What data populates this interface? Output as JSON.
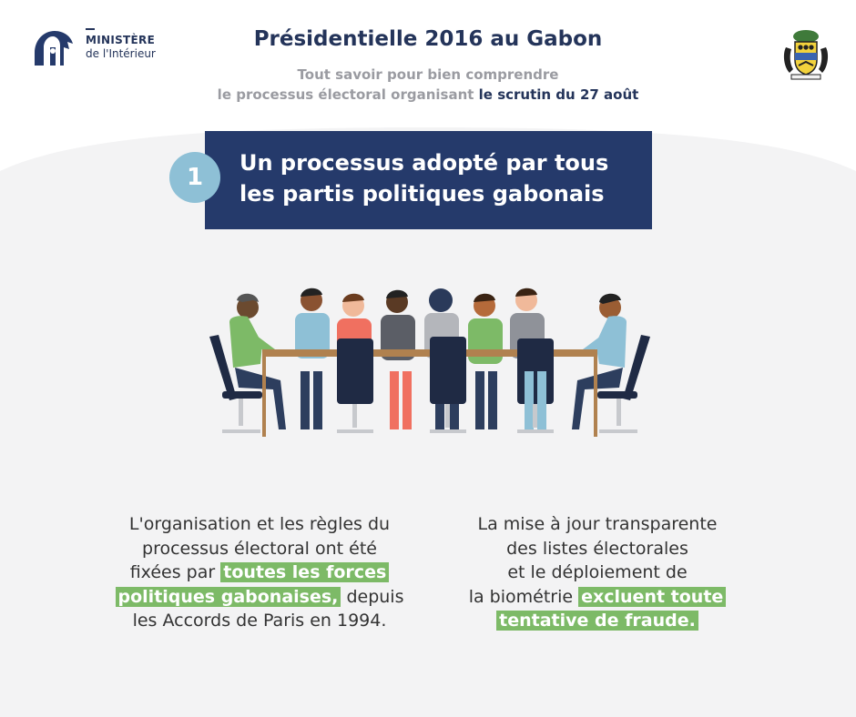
{
  "header": {
    "ministry_line1": "MINISTÈRE",
    "ministry_line2": "de l'Intérieur",
    "title": "Présidentielle 2016 au Gabon",
    "subtitle_line1": "Tout savoir pour bien comprendre",
    "subtitle_line2_plain": "le processus électoral organisant",
    "subtitle_line2_highlight": "le scrutin du 27 août"
  },
  "section": {
    "number": "1",
    "title_line1": "Un processus adopté par tous",
    "title_line2": "les partis politiques gabonais"
  },
  "paragraph_left": {
    "line1": "L'organisation et les règles du",
    "line2": "processus électoral ont été",
    "line3_plain": "fixées par",
    "highlight_part1": "toutes les forces",
    "highlight_part2": "politiques gabonaises,",
    "line4_rest": "depuis",
    "line5": "les Accords de Paris en 1994."
  },
  "paragraph_right": {
    "line1": "La mise à jour transparente",
    "line2": "des listes électorales",
    "line3": "et le déploiement de",
    "line4_plain": "la biométrie",
    "highlight_part1": "excluent toute",
    "highlight_part2": "tentative de fraude."
  },
  "icons": {
    "ministry_logo": "ministry-logo-icon",
    "coat_of_arms": "coat-of-arms-icon",
    "illustration": "meeting-table-illustration"
  },
  "colors": {
    "navy": "#253a6b",
    "light_blue": "#8ec0d6",
    "green_highlight": "#7dba67",
    "gray_text": "#9a9ba1",
    "background": "#f3f3f4"
  }
}
